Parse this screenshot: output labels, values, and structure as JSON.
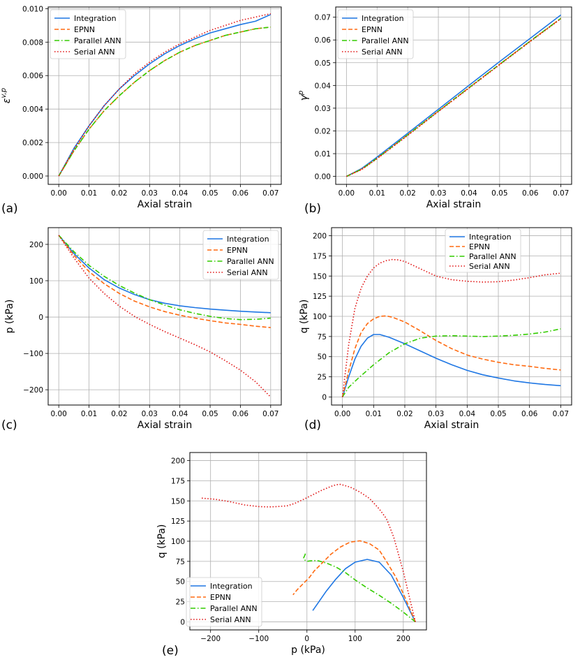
{
  "colors": {
    "integration": "#1f77e4",
    "epnn": "#ff6a10",
    "parallel": "#33cc00",
    "serial": "#e01010",
    "grid": "#b0b0b0"
  },
  "chart_data": [
    {
      "id": "a",
      "type": "line",
      "panel_label": "(a)",
      "xlabel": "Axial strain",
      "ylabel": "ε^{v,p}",
      "xlim": [
        -0.0035,
        0.0735
      ],
      "ylim": [
        -0.0005,
        0.0101
      ],
      "xticks": [
        0,
        0.01,
        0.02,
        0.03,
        0.04,
        0.05,
        0.06,
        0.07
      ],
      "xtick_labels": [
        "0.00",
        "0.01",
        "0.02",
        "0.03",
        "0.04",
        "0.05",
        "0.06",
        "0.07"
      ],
      "yticks": [
        0,
        0.002,
        0.004,
        0.006,
        0.008,
        0.01
      ],
      "ytick_labels": [
        "0.000",
        "0.002",
        "0.004",
        "0.006",
        "0.008",
        "0.010"
      ],
      "legend_loc": "top-left",
      "grid": true,
      "series": [
        {
          "name": "Integration",
          "style": "solid",
          "color_key": "integration",
          "x": [
            0,
            0.005,
            0.01,
            0.015,
            0.02,
            0.025,
            0.03,
            0.035,
            0.04,
            0.045,
            0.05,
            0.055,
            0.06,
            0.065,
            0.07
          ],
          "y": [
            0,
            0.00165,
            0.003,
            0.0042,
            0.0052,
            0.006,
            0.0067,
            0.0073,
            0.0078,
            0.0082,
            0.00855,
            0.0088,
            0.00905,
            0.00925,
            0.00965
          ]
        },
        {
          "name": "EPNN",
          "style": "dashed",
          "color_key": "epnn",
          "x": [
            0,
            0.005,
            0.01,
            0.015,
            0.02,
            0.025,
            0.03,
            0.035,
            0.04,
            0.045,
            0.05,
            0.055,
            0.06,
            0.065,
            0.07
          ],
          "y": [
            0,
            0.0015,
            0.0028,
            0.0039,
            0.0048,
            0.0056,
            0.0063,
            0.0069,
            0.0074,
            0.0078,
            0.0081,
            0.0084,
            0.0086,
            0.0088,
            0.0089
          ]
        },
        {
          "name": "Parallel ANN",
          "style": "dashdot",
          "color_key": "parallel",
          "x": [
            0,
            0.005,
            0.01,
            0.015,
            0.02,
            0.025,
            0.03,
            0.035,
            0.04,
            0.045,
            0.05,
            0.055,
            0.06,
            0.065,
            0.07
          ],
          "y": [
            0,
            0.0015,
            0.0028,
            0.0039,
            0.0048,
            0.0056,
            0.0063,
            0.0069,
            0.0074,
            0.0078,
            0.0081,
            0.0084,
            0.0086,
            0.0088,
            0.0089
          ]
        },
        {
          "name": "Serial ANN",
          "style": "dotted",
          "color_key": "serial",
          "x": [
            0,
            0.005,
            0.01,
            0.015,
            0.02,
            0.025,
            0.03,
            0.035,
            0.04,
            0.045,
            0.05,
            0.055,
            0.06,
            0.065,
            0.07
          ],
          "y": [
            0,
            0.0016,
            0.003,
            0.0042,
            0.0052,
            0.0061,
            0.0068,
            0.0074,
            0.0079,
            0.0083,
            0.0087,
            0.009,
            0.0093,
            0.0095,
            0.0097
          ]
        }
      ]
    },
    {
      "id": "b",
      "type": "line",
      "panel_label": "(b)",
      "xlabel": "Axial strain",
      "ylabel": "γ^p",
      "xlim": [
        -0.0035,
        0.0735
      ],
      "ylim": [
        -0.0035,
        0.0745
      ],
      "xticks": [
        0,
        0.01,
        0.02,
        0.03,
        0.04,
        0.05,
        0.06,
        0.07
      ],
      "xtick_labels": [
        "0.00",
        "0.01",
        "0.02",
        "0.03",
        "0.04",
        "0.05",
        "0.06",
        "0.07"
      ],
      "yticks": [
        0,
        0.01,
        0.02,
        0.03,
        0.04,
        0.05,
        0.06,
        0.07
      ],
      "ytick_labels": [
        "0.00",
        "0.01",
        "0.02",
        "0.03",
        "0.04",
        "0.05",
        "0.06",
        "0.07"
      ],
      "legend_loc": "top-left",
      "grid": true,
      "series": [
        {
          "name": "Integration",
          "style": "solid",
          "color_key": "integration",
          "x": [
            0,
            0.005,
            0.01,
            0.02,
            0.03,
            0.04,
            0.05,
            0.06,
            0.07
          ],
          "y": [
            0,
            0.0035,
            0.0085,
            0.019,
            0.0295,
            0.04,
            0.0505,
            0.0607,
            0.071
          ]
        },
        {
          "name": "EPNN",
          "style": "dashed",
          "color_key": "epnn",
          "x": [
            0,
            0.005,
            0.01,
            0.02,
            0.03,
            0.04,
            0.05,
            0.06,
            0.07
          ],
          "y": [
            0,
            0.0032,
            0.008,
            0.0183,
            0.0287,
            0.039,
            0.0493,
            0.0595,
            0.0695
          ]
        },
        {
          "name": "Parallel ANN",
          "style": "dashdot",
          "color_key": "parallel",
          "x": [
            0,
            0.005,
            0.01,
            0.02,
            0.03,
            0.04,
            0.05,
            0.06,
            0.07
          ],
          "y": [
            0,
            0.0032,
            0.008,
            0.0183,
            0.0287,
            0.039,
            0.0493,
            0.0595,
            0.0695
          ]
        },
        {
          "name": "Serial ANN",
          "style": "dotted",
          "color_key": "serial",
          "x": [
            0,
            0.005,
            0.01,
            0.02,
            0.03,
            0.04,
            0.05,
            0.06,
            0.07
          ],
          "y": [
            0,
            0.003,
            0.0078,
            0.018,
            0.0285,
            0.0388,
            0.0491,
            0.0593,
            0.0693
          ]
        }
      ]
    },
    {
      "id": "c",
      "type": "line",
      "panel_label": "(c)",
      "xlabel": "Axial strain",
      "ylabel": "p (kPa)",
      "xlim": [
        -0.0035,
        0.0735
      ],
      "ylim": [
        -242,
        246
      ],
      "xticks": [
        0,
        0.01,
        0.02,
        0.03,
        0.04,
        0.05,
        0.06,
        0.07
      ],
      "xtick_labels": [
        "0.00",
        "0.01",
        "0.02",
        "0.03",
        "0.04",
        "0.05",
        "0.06",
        "0.07"
      ],
      "yticks": [
        -200,
        -100,
        0,
        100,
        200
      ],
      "ytick_labels": [
        "−200",
        "−100",
        "0",
        "100",
        "200"
      ],
      "legend_loc": "top-right",
      "grid": true,
      "series": [
        {
          "name": "Integration",
          "style": "solid",
          "color_key": "integration",
          "x": [
            0,
            0.005,
            0.01,
            0.015,
            0.02,
            0.025,
            0.03,
            0.035,
            0.04,
            0.045,
            0.05,
            0.055,
            0.06,
            0.065,
            0.07
          ],
          "y": [
            225,
            175,
            135,
            103,
            80,
            62,
            48,
            38,
            31,
            26,
            22,
            19,
            16,
            14,
            12
          ]
        },
        {
          "name": "EPNN",
          "style": "dashed",
          "color_key": "epnn",
          "x": [
            0,
            0.005,
            0.01,
            0.015,
            0.02,
            0.025,
            0.03,
            0.035,
            0.04,
            0.045,
            0.05,
            0.055,
            0.06,
            0.065,
            0.07
          ],
          "y": [
            225,
            170,
            125,
            92,
            65,
            44,
            28,
            15,
            5,
            -3,
            -10,
            -16,
            -20,
            -25,
            -29
          ]
        },
        {
          "name": "Parallel ANN",
          "style": "dashdot",
          "color_key": "parallel",
          "x": [
            0,
            0.005,
            0.01,
            0.015,
            0.02,
            0.025,
            0.03,
            0.035,
            0.04,
            0.045,
            0.05,
            0.055,
            0.06,
            0.065,
            0.07
          ],
          "y": [
            225,
            180,
            142,
            112,
            87,
            66,
            48,
            33,
            20,
            10,
            2,
            -4,
            -7,
            -6,
            -3
          ]
        },
        {
          "name": "Serial ANN",
          "style": "dotted",
          "color_key": "serial",
          "x": [
            0,
            0.005,
            0.01,
            0.015,
            0.02,
            0.025,
            0.03,
            0.035,
            0.04,
            0.045,
            0.05,
            0.055,
            0.06,
            0.065,
            0.07
          ],
          "y": [
            225,
            163,
            107,
            65,
            30,
            2,
            -20,
            -40,
            -58,
            -76,
            -96,
            -120,
            -146,
            -178,
            -220
          ]
        }
      ]
    },
    {
      "id": "d",
      "type": "line",
      "panel_label": "(d)",
      "xlabel": "Axial strain",
      "ylabel": "q (kPa)",
      "xlim": [
        -0.0035,
        0.0735
      ],
      "ylim": [
        -10,
        210
      ],
      "xticks": [
        0,
        0.01,
        0.02,
        0.03,
        0.04,
        0.05,
        0.06,
        0.07
      ],
      "xtick_labels": [
        "0.00",
        "0.01",
        "0.02",
        "0.03",
        "0.04",
        "0.05",
        "0.06",
        "0.07"
      ],
      "yticks": [
        0,
        25,
        50,
        75,
        100,
        125,
        150,
        175,
        200
      ],
      "ytick_labels": [
        "0",
        "25",
        "50",
        "75",
        "100",
        "125",
        "150",
        "175",
        "200"
      ],
      "legend_loc": "top-center",
      "grid": true,
      "series": [
        {
          "name": "Integration",
          "style": "solid",
          "color_key": "integration",
          "x": [
            0,
            0.002,
            0.004,
            0.006,
            0.008,
            0.01,
            0.012,
            0.015,
            0.02,
            0.025,
            0.03,
            0.035,
            0.04,
            0.045,
            0.05,
            0.055,
            0.06,
            0.065,
            0.07
          ],
          "y": [
            0,
            25,
            47,
            63,
            73,
            77.5,
            77.5,
            74,
            66,
            57,
            48,
            40,
            33,
            27.5,
            23.5,
            20,
            17.5,
            15.5,
            14
          ]
        },
        {
          "name": "EPNN",
          "style": "dashed",
          "color_key": "epnn",
          "x": [
            0,
            0.002,
            0.004,
            0.006,
            0.008,
            0.01,
            0.012,
            0.014,
            0.016,
            0.02,
            0.025,
            0.03,
            0.035,
            0.04,
            0.045,
            0.05,
            0.055,
            0.06,
            0.065,
            0.07
          ],
          "y": [
            0,
            32,
            60,
            80,
            91,
            97,
            100,
            100.5,
            99,
            93,
            82,
            70,
            60,
            52,
            47,
            43,
            40,
            38,
            35.5,
            33.5
          ]
        },
        {
          "name": "Parallel ANN",
          "style": "dashdot",
          "color_key": "parallel",
          "x": [
            0,
            0.002,
            0.005,
            0.01,
            0.015,
            0.02,
            0.025,
            0.03,
            0.035,
            0.04,
            0.045,
            0.05,
            0.055,
            0.06,
            0.065,
            0.07
          ],
          "y": [
            0,
            12,
            23,
            40,
            55,
            66,
            73,
            75.5,
            76,
            75.5,
            75,
            75.5,
            76.5,
            78,
            80.5,
            84.5
          ]
        },
        {
          "name": "Serial ANN",
          "style": "dotted",
          "color_key": "serial",
          "x": [
            0,
            0.002,
            0.004,
            0.006,
            0.008,
            0.01,
            0.012,
            0.014,
            0.016,
            0.018,
            0.02,
            0.025,
            0.03,
            0.035,
            0.04,
            0.045,
            0.05,
            0.055,
            0.06,
            0.065,
            0.07
          ],
          "y": [
            0,
            65,
            110,
            135,
            150,
            160,
            166,
            169,
            170.5,
            170,
            168,
            159,
            150,
            145.5,
            143.5,
            142.5,
            143,
            145,
            148,
            151.5,
            153.5
          ]
        }
      ]
    },
    {
      "id": "e",
      "type": "line",
      "panel_label": "(e)",
      "xlabel": "p (kPa)",
      "ylabel": "q (kPa)",
      "xlim": [
        -243,
        248
      ],
      "ylim": [
        -10,
        210
      ],
      "xticks": [
        -200,
        -100,
        0,
        100,
        200
      ],
      "xtick_labels": [
        "−200",
        "−100",
        "0",
        "100",
        "200"
      ],
      "yticks": [
        0,
        25,
        50,
        75,
        100,
        125,
        150,
        175,
        200
      ],
      "ytick_labels": [
        "0",
        "25",
        "50",
        "75",
        "100",
        "125",
        "150",
        "175",
        "200"
      ],
      "legend_loc": "bottom-left",
      "grid": true,
      "series": [
        {
          "name": "Integration",
          "style": "solid",
          "color_key": "integration",
          "x": [
            225,
            200,
            175,
            150,
            125,
            100,
            80,
            60,
            40,
            25,
            12
          ],
          "y": [
            0,
            30,
            58,
            74,
            77.5,
            74,
            66,
            53,
            38,
            25,
            14
          ]
        },
        {
          "name": "EPNN",
          "style": "dashed",
          "color_key": "epnn",
          "x": [
            225,
            205,
            185,
            165,
            150,
            130,
            110,
            90,
            70,
            50,
            30,
            15,
            5,
            -10,
            -20,
            -29
          ],
          "y": [
            0,
            28,
            55,
            75,
            89,
            97,
            100.5,
            99,
            93,
            84,
            72,
            63,
            55,
            46,
            40,
            33.5
          ]
        },
        {
          "name": "Parallel ANN",
          "style": "dashdot",
          "color_key": "parallel",
          "x": [
            225,
            200,
            175,
            150,
            125,
            100,
            80,
            60,
            40,
            25,
            15,
            5,
            0,
            -4,
            -7,
            -4,
            -3
          ],
          "y": [
            0,
            12,
            23,
            33,
            42,
            52,
            61,
            68,
            73,
            75.5,
            76,
            75.5,
            75,
            76.5,
            79,
            83,
            85
          ]
        },
        {
          "name": "Serial ANN",
          "style": "dotted",
          "color_key": "serial",
          "x": [
            225,
            200,
            180,
            165,
            150,
            130,
            110,
            90,
            70,
            60,
            50,
            30,
            10,
            -10,
            -25,
            -40,
            -60,
            -80,
            -100,
            -130,
            -160,
            -190,
            -220
          ],
          "y": [
            0,
            62,
            105,
            128,
            140,
            153,
            161,
            167,
            170.5,
            170,
            168,
            163,
            157,
            151,
            147,
            144,
            143,
            142.5,
            143,
            145,
            149,
            152,
            153.5
          ]
        }
      ]
    }
  ]
}
